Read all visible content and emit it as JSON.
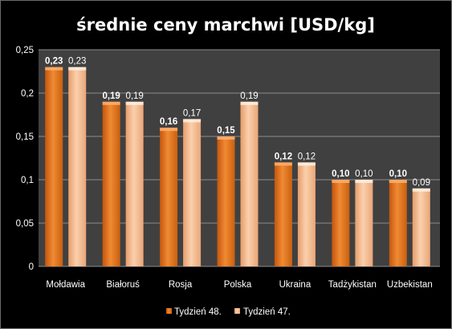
{
  "chart_data": {
    "type": "bar",
    "title": "średnie ceny marchwi [USD/kg]",
    "categories": [
      "Mołdawia",
      "Białoruś",
      "Rosja",
      "Polska",
      "Ukraina",
      "Tadżykistan",
      "Uzbekistan"
    ],
    "series": [
      {
        "name": "Tydzień 48.",
        "values": [
          0.23,
          0.19,
          0.16,
          0.15,
          0.12,
          0.1,
          0.1
        ],
        "labels": [
          "0,23",
          "0,19",
          "0,16",
          "0,15",
          "0,12",
          "0,10",
          "0,10"
        ],
        "color": "#e8741c",
        "label_bold": true
      },
      {
        "name": "Tydzień 47.",
        "values": [
          0.23,
          0.19,
          0.17,
          0.19,
          0.12,
          0.1,
          0.09
        ],
        "labels": [
          "0,23",
          "0,19",
          "0,17",
          "0,19",
          "0,12",
          "0,10",
          "0,09"
        ],
        "color": "#f7b98a",
        "label_bold": false
      }
    ],
    "ylim": [
      0,
      0.25
    ],
    "yticks": [
      0,
      0.05,
      0.1,
      0.15,
      0.2,
      0.25
    ],
    "ytick_labels": [
      "0",
      "0,05",
      "0,1",
      "0,15",
      "0,2",
      "0,25"
    ],
    "grid": true,
    "legend_position": "bottom",
    "plot_background": "#404040",
    "chart_background": "#000000"
  }
}
